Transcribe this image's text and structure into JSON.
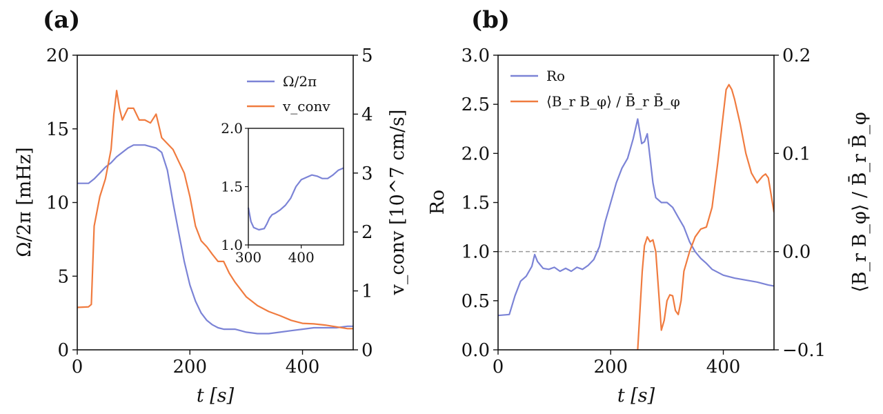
{
  "colors": {
    "blue": "#7b83d6",
    "orange": "#f07b3f",
    "axis": "#111111",
    "ref": "#999999"
  },
  "chart_data": [
    {
      "type": "line",
      "panel_label": "(a)",
      "xlabel": "t [s]",
      "ylabel_left": "Ω/2π [mHz]",
      "ylabel_right": "v_conv [10^7 cm/s]",
      "xlim": [
        0,
        490
      ],
      "ylim_left": [
        0,
        20
      ],
      "ylim_right": [
        0,
        5
      ],
      "x_ticks": [
        "0",
        "200",
        "400"
      ],
      "y_ticks_left": [
        "0",
        "5",
        "10",
        "15",
        "20"
      ],
      "y_ticks_right": [
        "0",
        "1",
        "2",
        "3",
        "4",
        "5"
      ],
      "legend": [
        "Ω/2π",
        "v_conv"
      ],
      "series": [
        {
          "name": "Ω/2π",
          "axis": "left",
          "color": "blue",
          "x": [
            0,
            20,
            30,
            40,
            50,
            60,
            70,
            80,
            90,
            100,
            110,
            120,
            130,
            140,
            150,
            160,
            170,
            180,
            190,
            200,
            210,
            220,
            230,
            240,
            250,
            260,
            270,
            280,
            290,
            300,
            320,
            340,
            360,
            380,
            400,
            420,
            440,
            460,
            480,
            490
          ],
          "y": [
            11.3,
            11.3,
            11.6,
            12.0,
            12.4,
            12.7,
            13.1,
            13.4,
            13.7,
            13.9,
            13.9,
            13.9,
            13.8,
            13.7,
            13.4,
            12.2,
            10.0,
            8.0,
            6.0,
            4.4,
            3.3,
            2.5,
            2.0,
            1.7,
            1.5,
            1.4,
            1.4,
            1.4,
            1.3,
            1.2,
            1.1,
            1.1,
            1.2,
            1.3,
            1.4,
            1.5,
            1.5,
            1.5,
            1.6,
            1.6
          ]
        },
        {
          "name": "v_conv",
          "axis": "right",
          "color": "orange",
          "x": [
            0,
            20,
            25,
            30,
            40,
            50,
            60,
            65,
            70,
            75,
            80,
            90,
            100,
            110,
            120,
            130,
            140,
            145,
            150,
            160,
            170,
            180,
            190,
            200,
            210,
            220,
            230,
            240,
            250,
            260,
            270,
            280,
            300,
            320,
            340,
            360,
            380,
            400,
            420,
            440,
            460,
            480,
            490
          ],
          "y": [
            0.72,
            0.73,
            0.77,
            2.1,
            2.6,
            2.9,
            3.4,
            4.0,
            4.4,
            4.1,
            3.9,
            4.1,
            4.1,
            3.9,
            3.9,
            3.85,
            4.0,
            3.8,
            3.6,
            3.5,
            3.4,
            3.2,
            3.0,
            2.6,
            2.1,
            1.85,
            1.75,
            1.62,
            1.5,
            1.5,
            1.3,
            1.15,
            0.9,
            0.75,
            0.65,
            0.58,
            0.5,
            0.45,
            0.44,
            0.42,
            0.39,
            0.36,
            0.36
          ]
        }
      ],
      "inset": {
        "xlim": [
          300,
          480
        ],
        "ylim": [
          1.0,
          2.0
        ],
        "x_ticks": [
          "300",
          "400"
        ],
        "y_ticks": [
          "1.0",
          "1.5",
          "2.0"
        ],
        "x": [
          300,
          305,
          310,
          320,
          330,
          335,
          340,
          345,
          350,
          360,
          370,
          380,
          390,
          400,
          410,
          420,
          430,
          440,
          450,
          460,
          470,
          480
        ],
        "y": [
          1.32,
          1.2,
          1.15,
          1.13,
          1.14,
          1.18,
          1.23,
          1.26,
          1.27,
          1.3,
          1.34,
          1.4,
          1.5,
          1.56,
          1.58,
          1.6,
          1.59,
          1.57,
          1.57,
          1.6,
          1.64,
          1.66
        ]
      }
    },
    {
      "type": "line",
      "panel_label": "(b)",
      "xlabel": "t [s]",
      "ylabel_left": "Ro",
      "ylabel_right": "⟨B_r B_φ⟩ / B̄_r B̄_φ",
      "xlim": [
        0,
        490
      ],
      "ylim_left": [
        0.0,
        3.0
      ],
      "ylim_right": [
        -0.1,
        0.2
      ],
      "x_ticks": [
        "0",
        "200",
        "400"
      ],
      "y_ticks_left": [
        "0.0",
        "0.5",
        "1.0",
        "1.5",
        "2.0",
        "2.5",
        "3.0"
      ],
      "y_ticks_right": [
        "−0.1",
        "0.0",
        "0.1",
        "0.2"
      ],
      "reference_line": {
        "axis": "left",
        "value": 1.0
      },
      "legend": [
        "Ro",
        "⟨B_r B_φ⟩ / B̄_r B̄_φ"
      ],
      "series": [
        {
          "name": "Ro",
          "axis": "left",
          "color": "blue",
          "x": [
            0,
            20,
            30,
            40,
            50,
            60,
            65,
            70,
            80,
            90,
            100,
            110,
            120,
            130,
            140,
            150,
            160,
            170,
            180,
            190,
            200,
            210,
            220,
            230,
            240,
            248,
            255,
            260,
            265,
            270,
            275,
            280,
            290,
            300,
            310,
            320,
            330,
            340,
            350,
            360,
            370,
            380,
            400,
            420,
            440,
            460,
            480,
            490
          ],
          "y": [
            0.35,
            0.36,
            0.55,
            0.7,
            0.75,
            0.85,
            0.97,
            0.9,
            0.83,
            0.82,
            0.84,
            0.8,
            0.83,
            0.8,
            0.84,
            0.82,
            0.86,
            0.92,
            1.05,
            1.3,
            1.5,
            1.7,
            1.85,
            1.95,
            2.15,
            2.35,
            2.1,
            2.12,
            2.2,
            1.95,
            1.7,
            1.55,
            1.5,
            1.5,
            1.45,
            1.35,
            1.25,
            1.1,
            1.0,
            0.93,
            0.88,
            0.82,
            0.76,
            0.73,
            0.71,
            0.69,
            0.66,
            0.65
          ]
        },
        {
          "name": "⟨B_r B_φ⟩ / B̄_r B̄_φ",
          "axis": "right",
          "color": "orange",
          "x": [
            248,
            252,
            256,
            260,
            265,
            270,
            275,
            280,
            285,
            290,
            295,
            300,
            305,
            310,
            315,
            320,
            325,
            330,
            340,
            350,
            360,
            370,
            380,
            390,
            400,
            405,
            410,
            415,
            420,
            430,
            440,
            450,
            460,
            470,
            475,
            480,
            490
          ],
          "y": [
            -0.1,
            -0.06,
            -0.02,
            0.006,
            0.015,
            0.01,
            0.012,
            0.0,
            -0.04,
            -0.08,
            -0.07,
            -0.05,
            -0.044,
            -0.045,
            -0.06,
            -0.064,
            -0.05,
            -0.02,
            0.0,
            0.015,
            0.023,
            0.025,
            0.045,
            0.09,
            0.14,
            0.165,
            0.17,
            0.165,
            0.155,
            0.13,
            0.1,
            0.08,
            0.07,
            0.077,
            0.079,
            0.075,
            0.04
          ]
        }
      ]
    }
  ]
}
